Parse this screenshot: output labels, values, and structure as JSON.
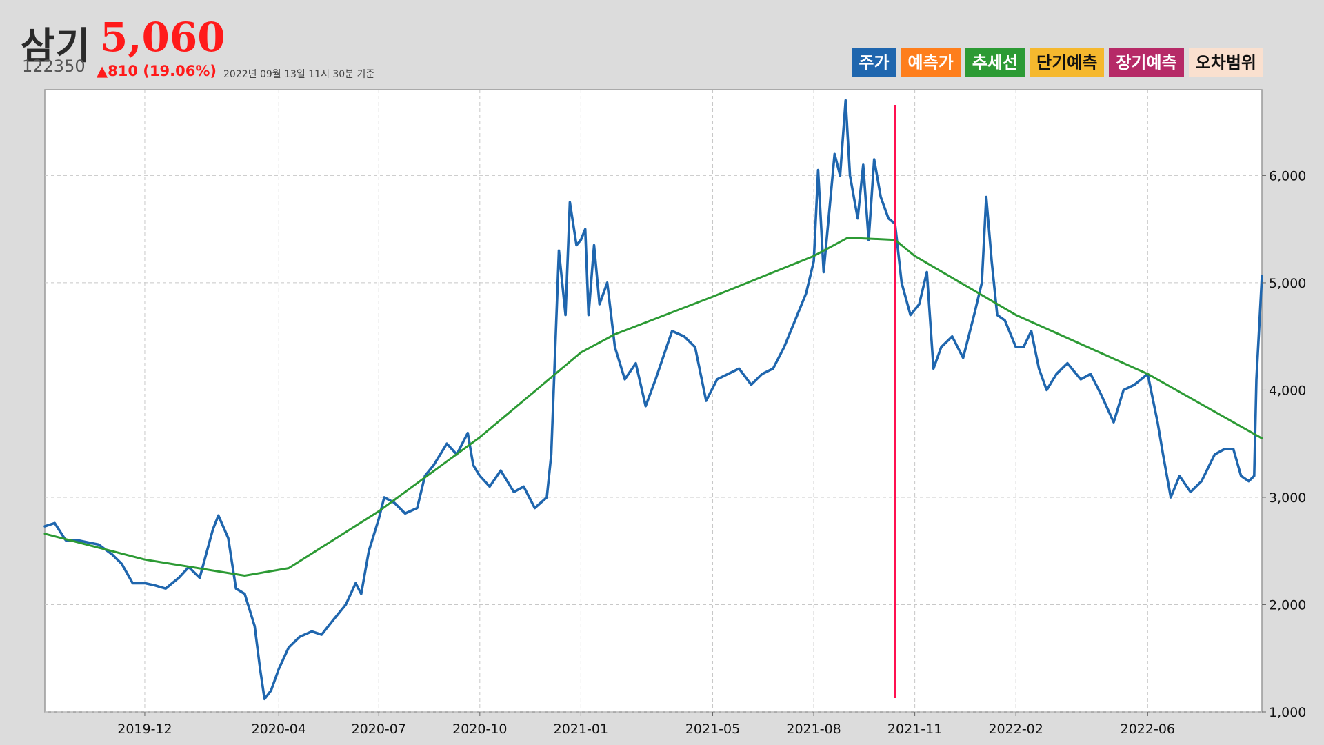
{
  "header": {
    "name": "삼기",
    "price": "5,060",
    "code": "122350",
    "change": "▲810 (19.06%)",
    "timestamp": "2022년 09월 13일 11시 30분 기준"
  },
  "legend": [
    {
      "label": "주가",
      "color": "#1f66ae",
      "text_dark": false
    },
    {
      "label": "예측가",
      "color": "#fe7e1c",
      "text_dark": false
    },
    {
      "label": "추세선",
      "color": "#2c9a34",
      "text_dark": false
    },
    {
      "label": "단기예측",
      "color": "#f5b82e",
      "text_dark": true
    },
    {
      "label": "장기예측",
      "color": "#b62a67",
      "text_dark": false
    },
    {
      "label": "오차범위",
      "color": "#fae0cf",
      "text_dark": true
    }
  ],
  "chart_data": {
    "type": "line",
    "title": "",
    "xlabel": "",
    "ylabel": "",
    "x_ticks": [
      "2019-12",
      "2020-04",
      "2020-07",
      "2020-10",
      "2021-01",
      "2021-05",
      "2021-08",
      "2021-11",
      "2022-02",
      "2022-06"
    ],
    "y_ticks": [
      "1,000",
      "2,000",
      "3,000",
      "4,000",
      "5,000",
      "6,000"
    ],
    "ylim": [
      1000,
      6800
    ],
    "grid": true,
    "y_axis_side": "right",
    "vertical_marker_date": "2021-10-14",
    "series": [
      {
        "name": "주가",
        "color": "#1f66ae",
        "points": [
          [
            "2019-09-01",
            2730
          ],
          [
            "2019-09-10",
            2760
          ],
          [
            "2019-09-20",
            2600
          ],
          [
            "2019-10-01",
            2600
          ],
          [
            "2019-10-10",
            2580
          ],
          [
            "2019-10-20",
            2560
          ],
          [
            "2019-11-01",
            2470
          ],
          [
            "2019-11-10",
            2380
          ],
          [
            "2019-11-20",
            2200
          ],
          [
            "2019-12-01",
            2200
          ],
          [
            "2019-12-10",
            2180
          ],
          [
            "2019-12-20",
            2150
          ],
          [
            "2020-01-01",
            2250
          ],
          [
            "2020-01-10",
            2350
          ],
          [
            "2020-01-20",
            2250
          ],
          [
            "2020-02-01",
            2700
          ],
          [
            "2020-02-06",
            2830
          ],
          [
            "2020-02-15",
            2620
          ],
          [
            "2020-02-22",
            2150
          ],
          [
            "2020-03-01",
            2100
          ],
          [
            "2020-03-10",
            1800
          ],
          [
            "2020-03-15",
            1400
          ],
          [
            "2020-03-19",
            1120
          ],
          [
            "2020-03-25",
            1200
          ],
          [
            "2020-04-01",
            1400
          ],
          [
            "2020-04-10",
            1600
          ],
          [
            "2020-04-20",
            1700
          ],
          [
            "2020-05-01",
            1750
          ],
          [
            "2020-05-10",
            1720
          ],
          [
            "2020-05-20",
            1850
          ],
          [
            "2020-06-01",
            2000
          ],
          [
            "2020-06-10",
            2200
          ],
          [
            "2020-06-15",
            2100
          ],
          [
            "2020-06-22",
            2500
          ],
          [
            "2020-07-01",
            2800
          ],
          [
            "2020-07-06",
            3000
          ],
          [
            "2020-07-15",
            2950
          ],
          [
            "2020-07-25",
            2850
          ],
          [
            "2020-08-05",
            2900
          ],
          [
            "2020-08-12",
            3200
          ],
          [
            "2020-08-20",
            3300
          ],
          [
            "2020-09-01",
            3500
          ],
          [
            "2020-09-10",
            3400
          ],
          [
            "2020-09-20",
            3600
          ],
          [
            "2020-09-25",
            3300
          ],
          [
            "2020-10-01",
            3200
          ],
          [
            "2020-10-10",
            3100
          ],
          [
            "2020-10-20",
            3250
          ],
          [
            "2020-11-01",
            3050
          ],
          [
            "2020-11-10",
            3100
          ],
          [
            "2020-11-20",
            2900
          ],
          [
            "2020-12-01",
            3000
          ],
          [
            "2020-12-05",
            3400
          ],
          [
            "2020-12-08",
            4200
          ],
          [
            "2020-12-12",
            5300
          ],
          [
            "2020-12-18",
            4700
          ],
          [
            "2020-12-22",
            5750
          ],
          [
            "2020-12-28",
            5350
          ],
          [
            "2021-01-01",
            5400
          ],
          [
            "2021-01-05",
            5500
          ],
          [
            "2021-01-08",
            4700
          ],
          [
            "2021-01-13",
            5350
          ],
          [
            "2021-01-18",
            4800
          ],
          [
            "2021-01-25",
            5000
          ],
          [
            "2021-02-01",
            4400
          ],
          [
            "2021-02-10",
            4100
          ],
          [
            "2021-02-20",
            4250
          ],
          [
            "2021-03-01",
            3850
          ],
          [
            "2021-03-10",
            4100
          ],
          [
            "2021-03-20",
            4400
          ],
          [
            "2021-03-25",
            4550
          ],
          [
            "2021-04-05",
            4500
          ],
          [
            "2021-04-15",
            4400
          ],
          [
            "2021-04-25",
            3900
          ],
          [
            "2021-05-05",
            4100
          ],
          [
            "2021-05-15",
            4150
          ],
          [
            "2021-05-25",
            4200
          ],
          [
            "2021-06-05",
            4050
          ],
          [
            "2021-06-15",
            4150
          ],
          [
            "2021-06-25",
            4200
          ],
          [
            "2021-07-05",
            4400
          ],
          [
            "2021-07-15",
            4650
          ],
          [
            "2021-07-25",
            4900
          ],
          [
            "2021-08-01",
            5200
          ],
          [
            "2021-08-05",
            6050
          ],
          [
            "2021-08-10",
            5100
          ],
          [
            "2021-08-20",
            6200
          ],
          [
            "2021-08-25",
            6000
          ],
          [
            "2021-08-30",
            6700
          ],
          [
            "2021-09-03",
            6000
          ],
          [
            "2021-09-10",
            5600
          ],
          [
            "2021-09-15",
            6100
          ],
          [
            "2021-09-20",
            5400
          ],
          [
            "2021-09-25",
            6150
          ],
          [
            "2021-10-01",
            5800
          ],
          [
            "2021-10-08",
            5600
          ],
          [
            "2021-10-14",
            5550
          ],
          [
            "2021-10-20",
            5000
          ],
          [
            "2021-10-28",
            4700
          ],
          [
            "2021-11-05",
            4800
          ],
          [
            "2021-11-12",
            5100
          ],
          [
            "2021-11-18",
            4200
          ],
          [
            "2021-11-25",
            4400
          ],
          [
            "2021-12-05",
            4500
          ],
          [
            "2021-12-15",
            4300
          ],
          [
            "2021-12-25",
            4700
          ],
          [
            "2022-01-01",
            5000
          ],
          [
            "2022-01-05",
            5800
          ],
          [
            "2022-01-10",
            5200
          ],
          [
            "2022-01-15",
            4700
          ],
          [
            "2022-01-22",
            4650
          ],
          [
            "2022-02-01",
            4400
          ],
          [
            "2022-02-08",
            4400
          ],
          [
            "2022-02-15",
            4550
          ],
          [
            "2022-02-22",
            4200
          ],
          [
            "2022-03-01",
            4000
          ],
          [
            "2022-03-10",
            4150
          ],
          [
            "2022-03-20",
            4250
          ],
          [
            "2022-04-01",
            4100
          ],
          [
            "2022-04-10",
            4150
          ],
          [
            "2022-04-20",
            3950
          ],
          [
            "2022-05-01",
            3700
          ],
          [
            "2022-05-10",
            4000
          ],
          [
            "2022-05-20",
            4050
          ],
          [
            "2022-06-01",
            4150
          ],
          [
            "2022-06-10",
            3700
          ],
          [
            "2022-06-15",
            3400
          ],
          [
            "2022-06-22",
            3000
          ],
          [
            "2022-06-30",
            3200
          ],
          [
            "2022-07-10",
            3050
          ],
          [
            "2022-07-20",
            3150
          ],
          [
            "2022-08-01",
            3400
          ],
          [
            "2022-08-10",
            3450
          ],
          [
            "2022-08-18",
            3450
          ],
          [
            "2022-08-25",
            3200
          ],
          [
            "2022-09-01",
            3150
          ],
          [
            "2022-09-06",
            3200
          ],
          [
            "2022-09-08",
            4100
          ],
          [
            "2022-09-13",
            5060
          ]
        ]
      },
      {
        "name": "추세선",
        "color": "#2c9a34",
        "points": [
          [
            "2019-09-01",
            2660
          ],
          [
            "2019-12-01",
            2420
          ],
          [
            "2020-03-01",
            2270
          ],
          [
            "2020-04-10",
            2340
          ],
          [
            "2020-07-01",
            2870
          ],
          [
            "2020-10-01",
            3560
          ],
          [
            "2021-01-01",
            4350
          ],
          [
            "2021-02-01",
            4520
          ],
          [
            "2021-05-01",
            4870
          ],
          [
            "2021-08-01",
            5250
          ],
          [
            "2021-09-01",
            5420
          ],
          [
            "2021-10-14",
            5400
          ],
          [
            "2021-11-01",
            5250
          ],
          [
            "2022-02-01",
            4700
          ],
          [
            "2022-06-01",
            4150
          ],
          [
            "2022-09-13",
            3550
          ]
        ]
      }
    ]
  }
}
